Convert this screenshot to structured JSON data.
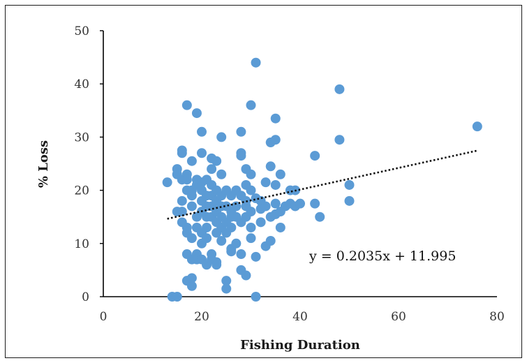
{
  "chart_data": {
    "type": "scatter",
    "title": "",
    "xlabel": "Fishing Duration",
    "ylabel": "% Loss",
    "xlim": [
      0,
      80
    ],
    "ylim": [
      0,
      50
    ],
    "xticks": [
      "0",
      "20",
      "40",
      "60",
      "80"
    ],
    "yticks": [
      "0",
      "10",
      "20",
      "30",
      "40",
      "50"
    ],
    "grid": false,
    "legend": "none",
    "point_color": "#5b9bd5",
    "trendline": {
      "equation": "y = 0.2035x + 11.995",
      "slope": 0.2035,
      "intercept": 11.995,
      "x_range": [
        13,
        76
      ],
      "style": "dotted",
      "color": "#111111"
    },
    "points": [
      [
        13,
        21.5
      ],
      [
        14,
        0
      ],
      [
        15,
        0
      ],
      [
        15,
        16
      ],
      [
        15,
        23
      ],
      [
        15,
        24
      ],
      [
        16,
        27
      ],
      [
        16,
        27.5
      ],
      [
        16,
        22
      ],
      [
        16,
        18
      ],
      [
        16,
        16
      ],
      [
        16,
        14
      ],
      [
        17,
        36
      ],
      [
        17,
        23
      ],
      [
        17,
        22
      ],
      [
        17,
        20
      ],
      [
        17,
        13
      ],
      [
        17,
        12
      ],
      [
        17,
        8
      ],
      [
        17,
        3
      ],
      [
        18,
        20
      ],
      [
        18,
        19
      ],
      [
        18,
        17
      ],
      [
        18,
        11
      ],
      [
        18,
        7
      ],
      [
        18,
        2
      ],
      [
        18,
        3.5
      ],
      [
        18,
        25.5
      ],
      [
        19,
        34.5
      ],
      [
        19,
        22
      ],
      [
        19,
        21
      ],
      [
        19,
        15
      ],
      [
        19,
        13
      ],
      [
        19,
        8
      ],
      [
        19,
        7
      ],
      [
        20,
        31
      ],
      [
        20,
        27
      ],
      [
        20,
        21.5
      ],
      [
        20,
        20
      ],
      [
        20,
        18
      ],
      [
        20,
        16
      ],
      [
        20,
        12
      ],
      [
        20,
        10
      ],
      [
        20,
        7
      ],
      [
        21,
        22
      ],
      [
        21,
        19
      ],
      [
        21,
        17
      ],
      [
        21,
        15
      ],
      [
        21,
        13
      ],
      [
        21,
        11
      ],
      [
        21,
        6
      ],
      [
        22,
        26
      ],
      [
        22,
        24
      ],
      [
        22,
        21
      ],
      [
        22,
        19
      ],
      [
        22,
        17
      ],
      [
        22,
        15
      ],
      [
        22,
        8
      ],
      [
        22,
        7
      ],
      [
        23,
        25.5
      ],
      [
        23,
        20
      ],
      [
        23,
        18
      ],
      [
        23,
        16
      ],
      [
        23,
        14
      ],
      [
        23,
        12
      ],
      [
        23,
        6.5
      ],
      [
        23,
        6
      ],
      [
        24,
        30
      ],
      [
        24,
        23
      ],
      [
        24,
        19
      ],
      [
        24,
        17
      ],
      [
        24,
        15
      ],
      [
        24,
        13
      ],
      [
        24,
        10.5
      ],
      [
        25,
        20
      ],
      [
        25,
        17
      ],
      [
        25,
        14
      ],
      [
        25,
        12
      ],
      [
        25,
        3
      ],
      [
        25,
        1.5
      ],
      [
        26,
        19
      ],
      [
        26,
        16
      ],
      [
        26,
        15
      ],
      [
        26,
        13
      ],
      [
        26,
        9
      ],
      [
        26,
        8.5
      ],
      [
        27,
        20
      ],
      [
        27,
        17
      ],
      [
        27,
        15
      ],
      [
        27,
        10
      ],
      [
        28,
        31
      ],
      [
        28,
        27
      ],
      [
        28,
        26.5
      ],
      [
        28,
        19
      ],
      [
        28,
        14
      ],
      [
        28,
        8
      ],
      [
        28,
        5
      ],
      [
        29,
        24
      ],
      [
        29,
        21
      ],
      [
        29,
        18
      ],
      [
        29,
        17
      ],
      [
        29,
        15
      ],
      [
        29,
        4
      ],
      [
        30,
        36
      ],
      [
        30,
        23
      ],
      [
        30,
        20
      ],
      [
        30,
        16
      ],
      [
        30,
        13
      ],
      [
        30,
        11
      ],
      [
        31,
        44
      ],
      [
        31,
        18.5
      ],
      [
        31,
        0
      ],
      [
        31,
        7.5
      ],
      [
        32,
        18
      ],
      [
        32,
        14
      ],
      [
        32,
        16.5
      ],
      [
        33,
        21.5
      ],
      [
        33,
        17
      ],
      [
        33,
        9.5
      ],
      [
        34,
        29
      ],
      [
        34,
        24.5
      ],
      [
        34,
        15
      ],
      [
        34,
        10.5
      ],
      [
        35,
        33.5
      ],
      [
        35,
        29.5
      ],
      [
        35,
        21
      ],
      [
        35,
        17.5
      ],
      [
        35,
        15.5
      ],
      [
        36,
        23
      ],
      [
        36,
        16
      ],
      [
        36,
        13
      ],
      [
        37,
        17
      ],
      [
        38,
        20
      ],
      [
        38,
        17.5
      ],
      [
        39,
        20
      ],
      [
        39,
        17
      ],
      [
        40,
        17.5
      ],
      [
        43,
        26.5
      ],
      [
        43,
        17.5
      ],
      [
        44,
        15
      ],
      [
        48,
        39
      ],
      [
        48,
        29.5
      ],
      [
        50,
        21
      ],
      [
        50,
        18
      ],
      [
        76,
        32
      ]
    ]
  }
}
